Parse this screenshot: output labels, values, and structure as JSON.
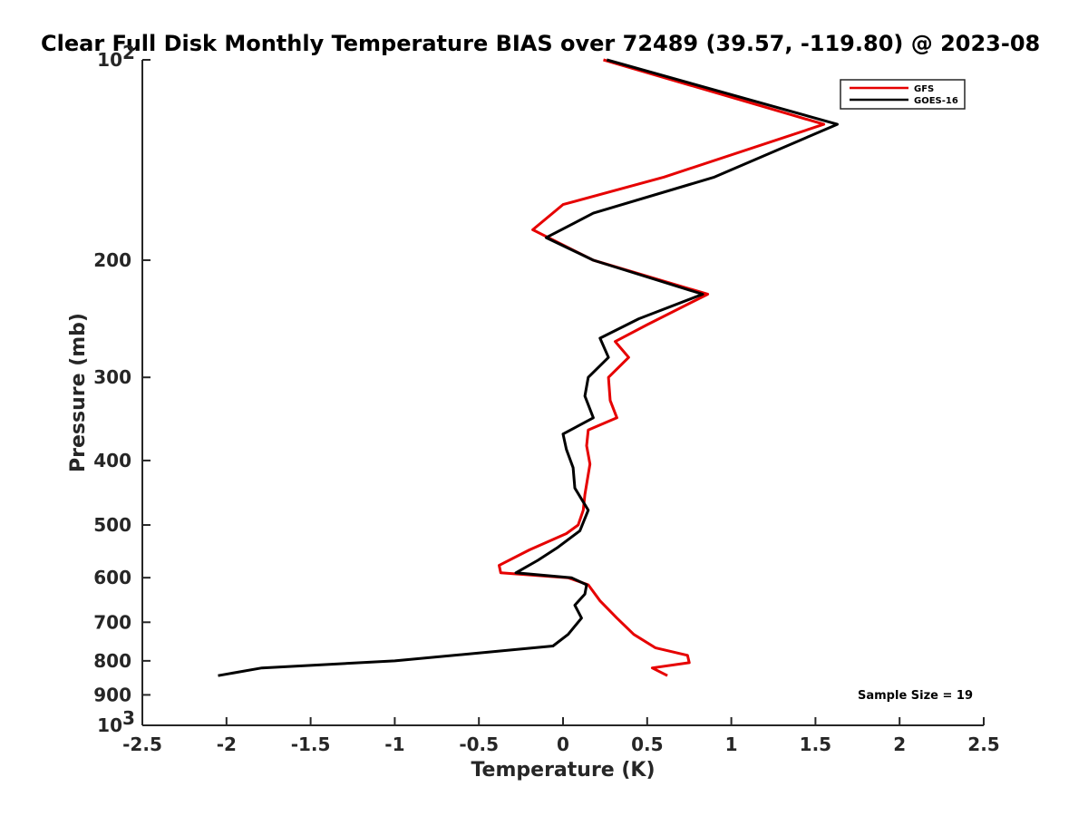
{
  "chart_data": {
    "type": "line",
    "title": "Clear Full Disk Monthly Temperature BIAS over 72489 (39.57, -119.80) @ 2023-08",
    "xlabel": "Temperature (K)",
    "ylabel": "Pressure (mb)",
    "xlim": [
      -2.5,
      2.5
    ],
    "ylim": [
      100,
      1000
    ],
    "yscale": "log",
    "y_reversed": true,
    "x_ticks": [
      -2.5,
      -2,
      -1.5,
      -1,
      -0.5,
      0,
      0.5,
      1,
      1.5,
      2,
      2.5
    ],
    "x_tick_labels": [
      "-2.5",
      "-2",
      "-1.5",
      "-1",
      "-0.5",
      "0",
      "0.5",
      "1",
      "1.5",
      "2",
      "2.5"
    ],
    "y_ticks": [
      100,
      200,
      300,
      400,
      500,
      600,
      700,
      800,
      900,
      1000
    ],
    "y_tick_labels": [
      {
        "base": "10",
        "exp": "2"
      },
      {
        "base": "200",
        "exp": ""
      },
      {
        "base": "300",
        "exp": ""
      },
      {
        "base": "400",
        "exp": ""
      },
      {
        "base": "500",
        "exp": ""
      },
      {
        "base": "600",
        "exp": ""
      },
      {
        "base": "700",
        "exp": ""
      },
      {
        "base": "800",
        "exp": ""
      },
      {
        "base": "900",
        "exp": ""
      },
      {
        "base": "10",
        "exp": "3"
      }
    ],
    "legend_position": "top-right",
    "series": [
      {
        "name": "GFS",
        "color": "#e60000",
        "points": [
          [
            0.24,
            100
          ],
          [
            1.55,
            125
          ],
          [
            0.6,
            150
          ],
          [
            0.0,
            165
          ],
          [
            -0.18,
            180
          ],
          [
            0.18,
            200
          ],
          [
            0.86,
            225
          ],
          [
            0.5,
            250
          ],
          [
            0.31,
            265
          ],
          [
            0.39,
            280
          ],
          [
            0.27,
            300
          ],
          [
            0.28,
            325
          ],
          [
            0.32,
            345
          ],
          [
            0.15,
            360
          ],
          [
            0.14,
            380
          ],
          [
            0.16,
            405
          ],
          [
            0.13,
            450
          ],
          [
            0.12,
            475
          ],
          [
            0.09,
            500
          ],
          [
            0.02,
            515
          ],
          [
            -0.2,
            545
          ],
          [
            -0.38,
            575
          ],
          [
            -0.37,
            590
          ],
          [
            0.03,
            600
          ],
          [
            0.15,
            615
          ],
          [
            0.22,
            650
          ],
          [
            0.32,
            690
          ],
          [
            0.42,
            730
          ],
          [
            0.55,
            765
          ],
          [
            0.74,
            785
          ],
          [
            0.75,
            805
          ],
          [
            0.53,
            820
          ],
          [
            0.62,
            842
          ]
        ]
      },
      {
        "name": "GOES-16",
        "color": "#000000",
        "points": [
          [
            0.26,
            100
          ],
          [
            1.63,
            125
          ],
          [
            0.9,
            150
          ],
          [
            0.18,
            170
          ],
          [
            -0.1,
            185
          ],
          [
            0.18,
            200
          ],
          [
            0.83,
            225
          ],
          [
            0.45,
            245
          ],
          [
            0.22,
            262
          ],
          [
            0.27,
            280
          ],
          [
            0.15,
            300
          ],
          [
            0.13,
            320
          ],
          [
            0.18,
            345
          ],
          [
            0.0,
            365
          ],
          [
            0.02,
            385
          ],
          [
            0.06,
            410
          ],
          [
            0.07,
            440
          ],
          [
            0.15,
            475
          ],
          [
            0.1,
            510
          ],
          [
            -0.03,
            540
          ],
          [
            -0.15,
            565
          ],
          [
            -0.28,
            590
          ],
          [
            0.05,
            600
          ],
          [
            0.14,
            615
          ],
          [
            0.13,
            635
          ],
          [
            0.07,
            660
          ],
          [
            0.11,
            690
          ],
          [
            0.03,
            730
          ],
          [
            -0.06,
            760
          ],
          [
            -1.0,
            800
          ],
          [
            -1.79,
            820
          ],
          [
            -2.05,
            842
          ]
        ]
      }
    ],
    "annotations": [
      "Sample Size = 19"
    ]
  }
}
